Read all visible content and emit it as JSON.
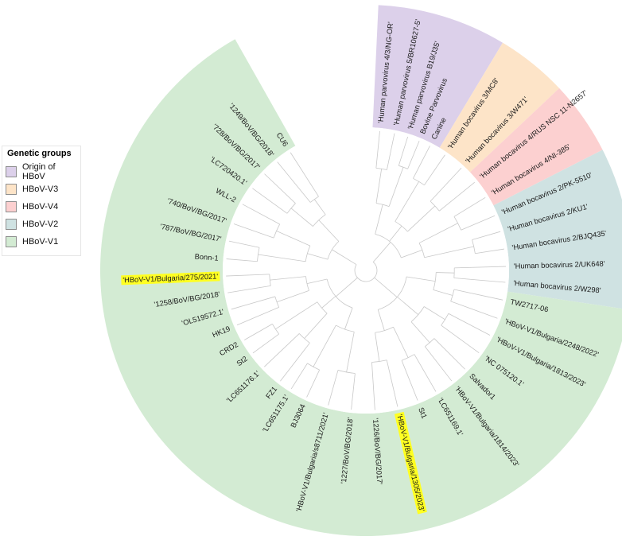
{
  "legend": {
    "title": "Genetic groups",
    "items": [
      {
        "label": "Origin of HBoV",
        "color": "#dcd0ea"
      },
      {
        "label": "HBoV-V3",
        "color": "#fde4c8"
      },
      {
        "label": "HBoV-V4",
        "color": "#fcd0d0"
      },
      {
        "label": "HBoV-V2",
        "color": "#cfe2e2"
      },
      {
        "label": "HBoV-V1",
        "color": "#d3ebd3"
      }
    ]
  },
  "tree": {
    "highlight_color": "#ffff22",
    "leaves": [
      {
        "label": "'Human parvovirus 4/3/NG-OR'",
        "group": 0,
        "angle": -84.3
      },
      {
        "label": "'Human parvovirus 5/BR10627-5'",
        "group": 0,
        "angle": -78.2
      },
      {
        "label": "'Human parvovirus B19/J35'",
        "group": 0,
        "angle": -72.6
      },
      {
        "label": "Bovine Parvovirus",
        "group": 0,
        "angle": -67.6
      },
      {
        "label": "Canine",
        "group": 0,
        "angle": -62.8
      },
      {
        "label": "'Human bocavirus 3/MC8'",
        "group": 1,
        "angle": -55.6
      },
      {
        "label": "'Human bocavirus 3/W471'",
        "group": 1,
        "angle": -47.0
      },
      {
        "label": "'Human bocavirus 4/RUS NSC 11-N2657'",
        "group": 2,
        "angle": -39.0
      },
      {
        "label": "'Human bocavirus 4/NI-385'",
        "group": 2,
        "angle": -31.4
      },
      {
        "label": "'Human bocavirus 2/PK-5510'",
        "group": 3,
        "angle": -23.0
      },
      {
        "label": "'Human bocavirus 2/KU1'",
        "group": 3,
        "angle": -16.1
      },
      {
        "label": "'Human bocavirus 2/BJQ435'",
        "group": 3,
        "angle": -8.8
      },
      {
        "label": "'Human bocavirus 2/UK648'",
        "group": 3,
        "angle": -1.6
      },
      {
        "label": "'Human bocavirus 2/W298'",
        "group": 3,
        "angle": 4.9
      },
      {
        "label": "TW2717-06",
        "group": 4,
        "angle": 12.2
      },
      {
        "label": "'HBoV-V1/Bulgaria/2248/2022'",
        "group": 4,
        "angle": 20.0
      },
      {
        "label": "'HBoV-V1/Bulgaria/1813/2023'",
        "group": 4,
        "angle": 27.6
      },
      {
        "label": "'NC 075120.1'",
        "group": 4,
        "angle": 36.1
      },
      {
        "label": "Salvador1",
        "group": 4,
        "angle": 44.9
      },
      {
        "label": "'HBoV-V1/Bulgaria/1814/2023'",
        "group": 4,
        "angle": 52.2
      },
      {
        "label": "'LC651169.1'",
        "group": 4,
        "angle": 60.0
      },
      {
        "label": "St1",
        "group": 4,
        "angle": 68.3
      },
      {
        "label": "'HBoV-V1/Bulgaria/1305/2023'",
        "group": 4,
        "angle": 76.9,
        "highlight": true
      },
      {
        "label": "'1226/BoV/BG/2017'",
        "group": 4,
        "angle": 86.3
      },
      {
        "label": "'1227/BoV/BG/2018'",
        "group": 4,
        "angle": 96.0
      },
      {
        "label": "'HBoV-V1/Bulgaria/s8711/2021'",
        "group": 4,
        "angle": 105.6
      },
      {
        "label": "BJ3064",
        "group": 4,
        "angle": 115.0
      },
      {
        "label": "'LC651175.1'",
        "group": 4,
        "angle": 122.2
      },
      {
        "label": "FZ1",
        "group": 4,
        "angle": 127.7
      },
      {
        "label": "'LC651176.1'",
        "group": 4,
        "angle": 136.5
      },
      {
        "label": "St2",
        "group": 4,
        "angle": 143.8
      },
      {
        "label": "CRD2",
        "group": 4,
        "angle": 150.2
      },
      {
        "label": "HK19",
        "group": 4,
        "angle": 157.0
      },
      {
        "label": "'OL519572.1'",
        "group": 4,
        "angle": 163.9
      },
      {
        "label": "'1258/BoV/BG/2018'",
        "group": 4,
        "angle": 170.8
      },
      {
        "label": "'HBoV-V1/Bulgaria/275/2021'",
        "group": 4,
        "angle": 177.7,
        "highlight": true
      },
      {
        "label": "Bonn-1",
        "group": 4,
        "angle": 184.7
      },
      {
        "label": "'787/BoV/BG/2017'",
        "group": 4,
        "angle": 192.1
      },
      {
        "label": "'740/BoV/BG/2017'",
        "group": 4,
        "angle": 199.4
      },
      {
        "label": "WLL-2",
        "group": 4,
        "angle": 208.2
      },
      {
        "label": "'LC720420.1'",
        "group": 4,
        "angle": 215.9
      },
      {
        "label": "'728/BoV/BG/2017'",
        "group": 4,
        "angle": 223.6
      },
      {
        "label": "'1249/BoV/BG/2018'",
        "group": 4,
        "angle": 230.8
      },
      {
        "label": "CU6",
        "group": 4,
        "angle": 237.4
      }
    ],
    "sectors": [
      {
        "group": 0,
        "start": -87.3,
        "end": -59.0
      },
      {
        "group": 1,
        "start": -59.0,
        "end": -43.3
      },
      {
        "group": 2,
        "start": -43.3,
        "end": -27.0
      },
      {
        "group": 3,
        "start": -27.0,
        "end": 8.5
      },
      {
        "group": 4,
        "start": 8.5,
        "end": 240.5
      }
    ]
  }
}
